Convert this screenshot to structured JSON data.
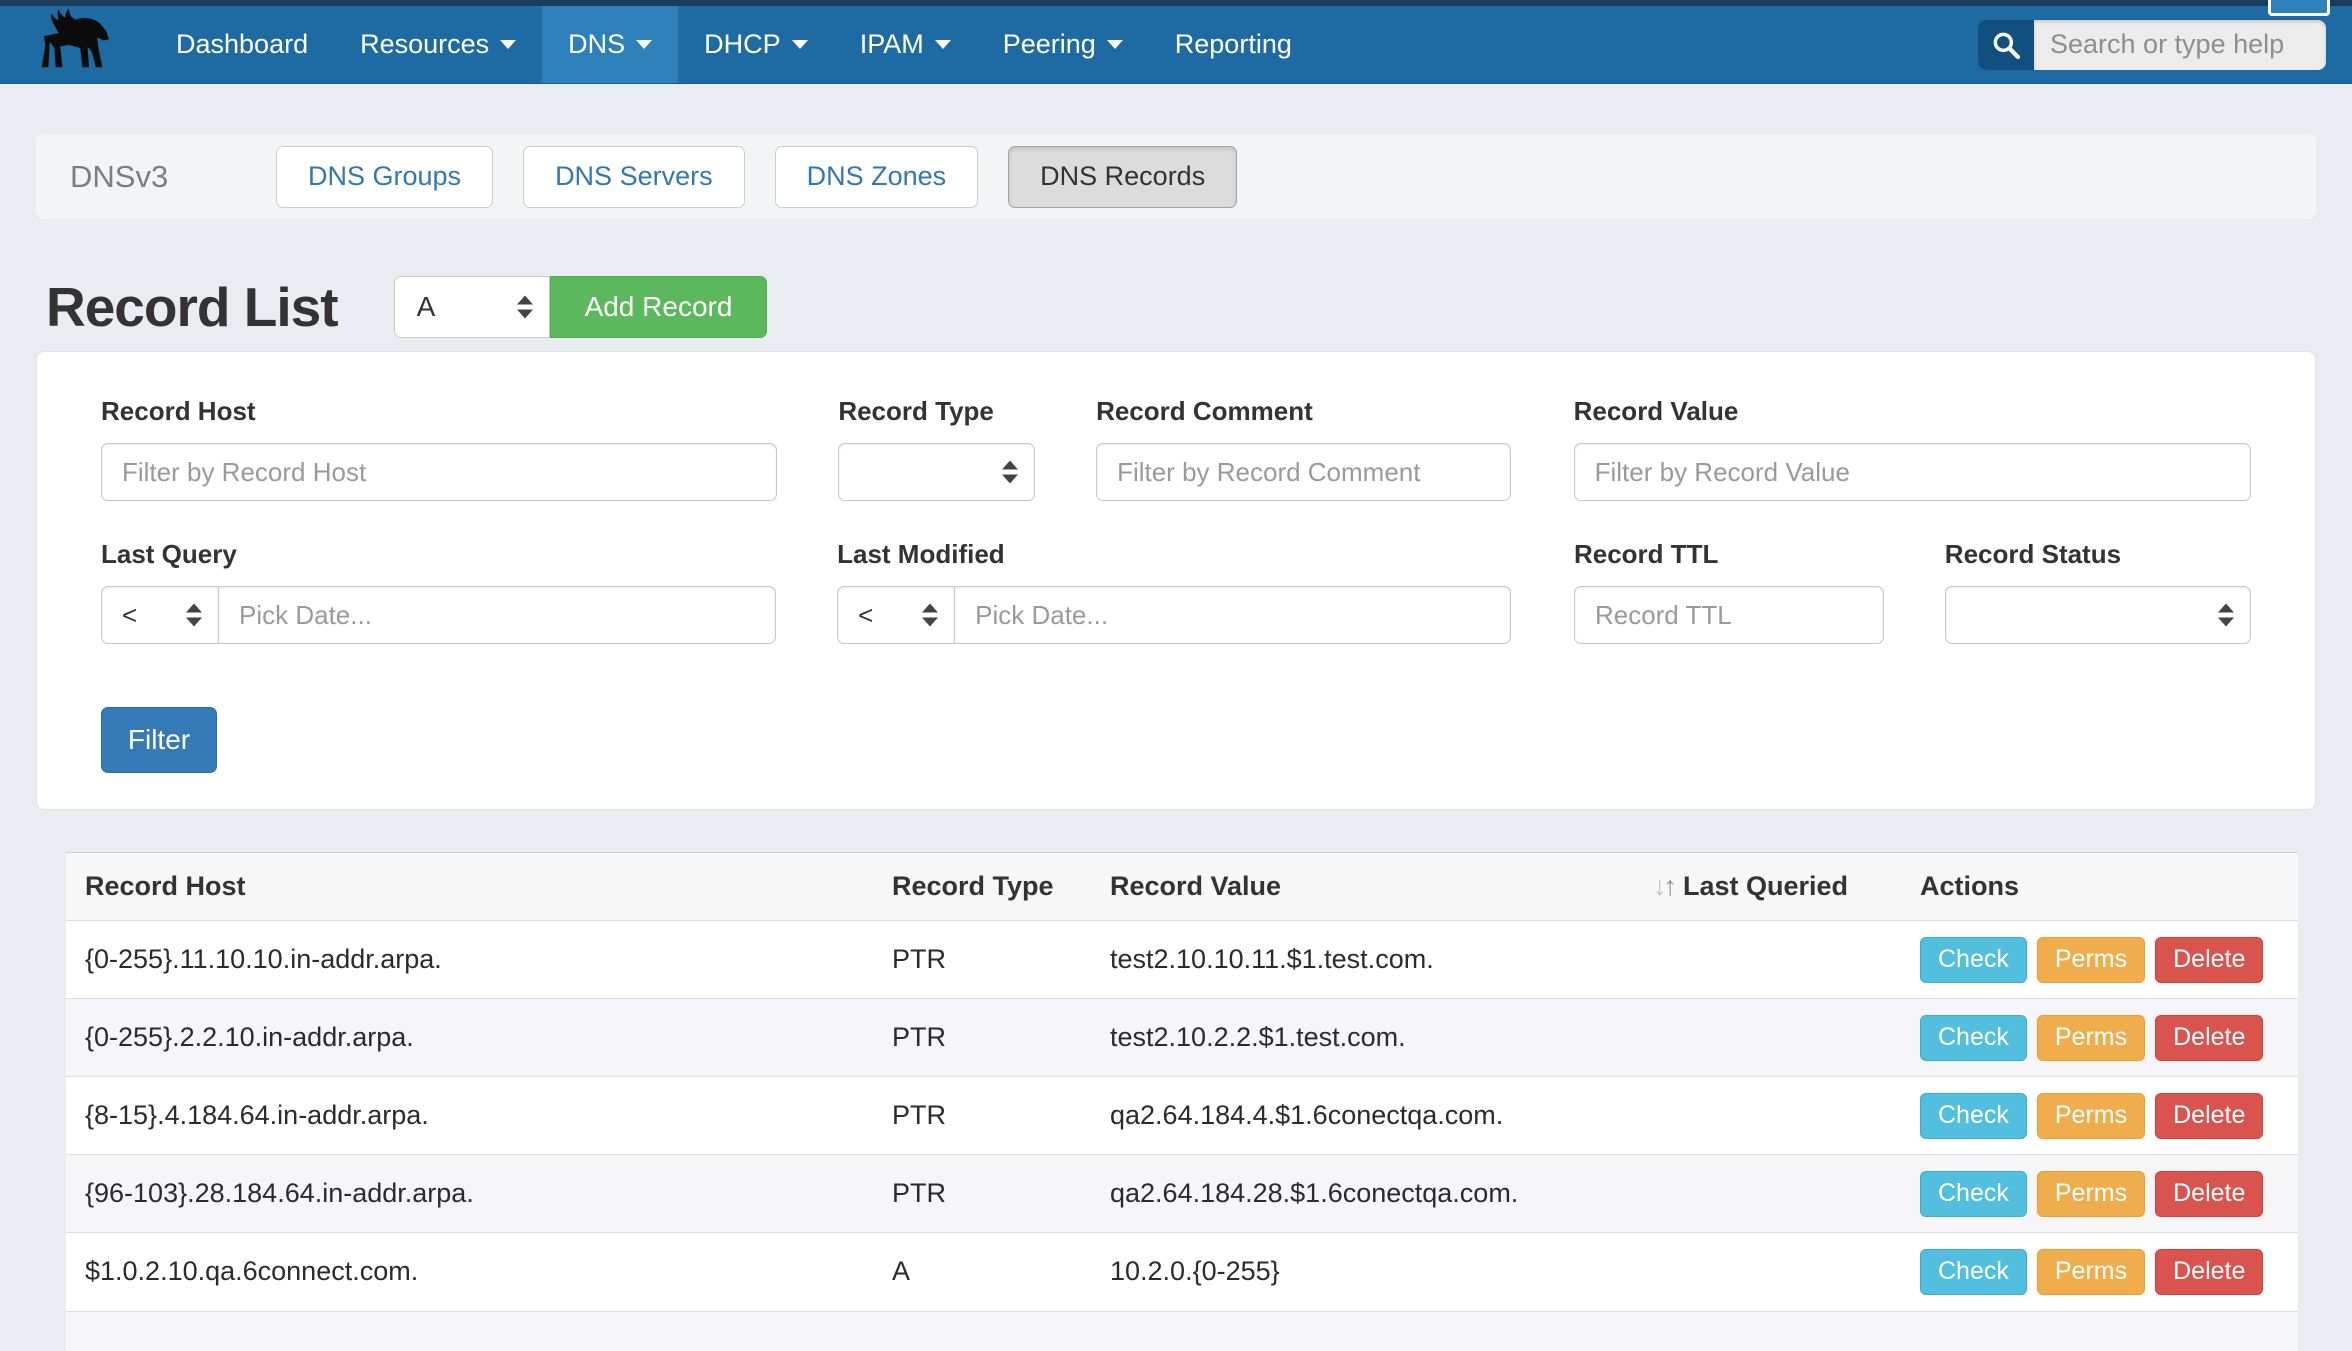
{
  "navbar": {
    "items": [
      {
        "label": "Dashboard",
        "caret": false,
        "active": false
      },
      {
        "label": "Resources",
        "caret": true,
        "active": false
      },
      {
        "label": "DNS",
        "caret": true,
        "active": true
      },
      {
        "label": "DHCP",
        "caret": true,
        "active": false
      },
      {
        "label": "IPAM",
        "caret": true,
        "active": false
      },
      {
        "label": "Peering",
        "caret": true,
        "active": false
      },
      {
        "label": "Reporting",
        "caret": false,
        "active": false
      }
    ],
    "search_placeholder": "Search or type help"
  },
  "subnav": {
    "title": "DNSv3",
    "tabs": [
      {
        "label": "DNS Groups",
        "active": false
      },
      {
        "label": "DNS Servers",
        "active": false
      },
      {
        "label": "DNS Zones",
        "active": false
      },
      {
        "label": "DNS Records",
        "active": true
      }
    ]
  },
  "record_list": {
    "title": "Record List",
    "type_selected": "A",
    "add_button_label": "Add Record"
  },
  "filters": {
    "record_host": {
      "label": "Record Host",
      "placeholder": "Filter by Record Host",
      "value": ""
    },
    "record_type": {
      "label": "Record Type",
      "value": ""
    },
    "record_comment": {
      "label": "Record Comment",
      "placeholder": "Filter by Record Comment",
      "value": ""
    },
    "record_value": {
      "label": "Record Value",
      "placeholder": "Filter by Record Value",
      "value": ""
    },
    "last_query": {
      "label": "Last Query",
      "operator": "<",
      "placeholder": "Pick Date...",
      "value": ""
    },
    "last_modified": {
      "label": "Last Modified",
      "operator": "<",
      "placeholder": "Pick Date...",
      "value": ""
    },
    "record_ttl": {
      "label": "Record TTL",
      "placeholder": "Record TTL",
      "value": ""
    },
    "record_status": {
      "label": "Record Status",
      "value": ""
    },
    "filter_button_label": "Filter"
  },
  "table": {
    "headers": [
      "Record Host",
      "Record Type",
      "Record Value",
      "Last Queried",
      "Actions"
    ],
    "action_labels": [
      "Check",
      "Perms",
      "Delete"
    ],
    "rows": [
      {
        "host": "{0-255}.11.10.10.in-addr.arpa.",
        "type": "PTR",
        "value": "test2.10.10.11.$1.test.com.",
        "last_queried": ""
      },
      {
        "host": "{0-255}.2.2.10.in-addr.arpa.",
        "type": "PTR",
        "value": "test2.10.2.2.$1.test.com.",
        "last_queried": ""
      },
      {
        "host": "{8-15}.4.184.64.in-addr.arpa.",
        "type": "PTR",
        "value": "qa2.64.184.4.$1.6conectqa.com.",
        "last_queried": ""
      },
      {
        "host": "{96-103}.28.184.64.in-addr.arpa.",
        "type": "PTR",
        "value": "qa2.64.184.28.$1.6conectqa.com.",
        "last_queried": ""
      },
      {
        "host": "$1.0.2.10.qa.6connect.com.",
        "type": "A",
        "value": "10.2.0.{0-255}",
        "last_queried": ""
      }
    ]
  },
  "colors": {
    "navbar": "#1e6ba4",
    "navbar_active": "#2e80ba",
    "accent_blue": "#337ab7",
    "success_green": "#5cb85c",
    "info_cyan": "#53bfdf",
    "warning_orange": "#f0ad4e",
    "danger_red": "#d9534f"
  }
}
